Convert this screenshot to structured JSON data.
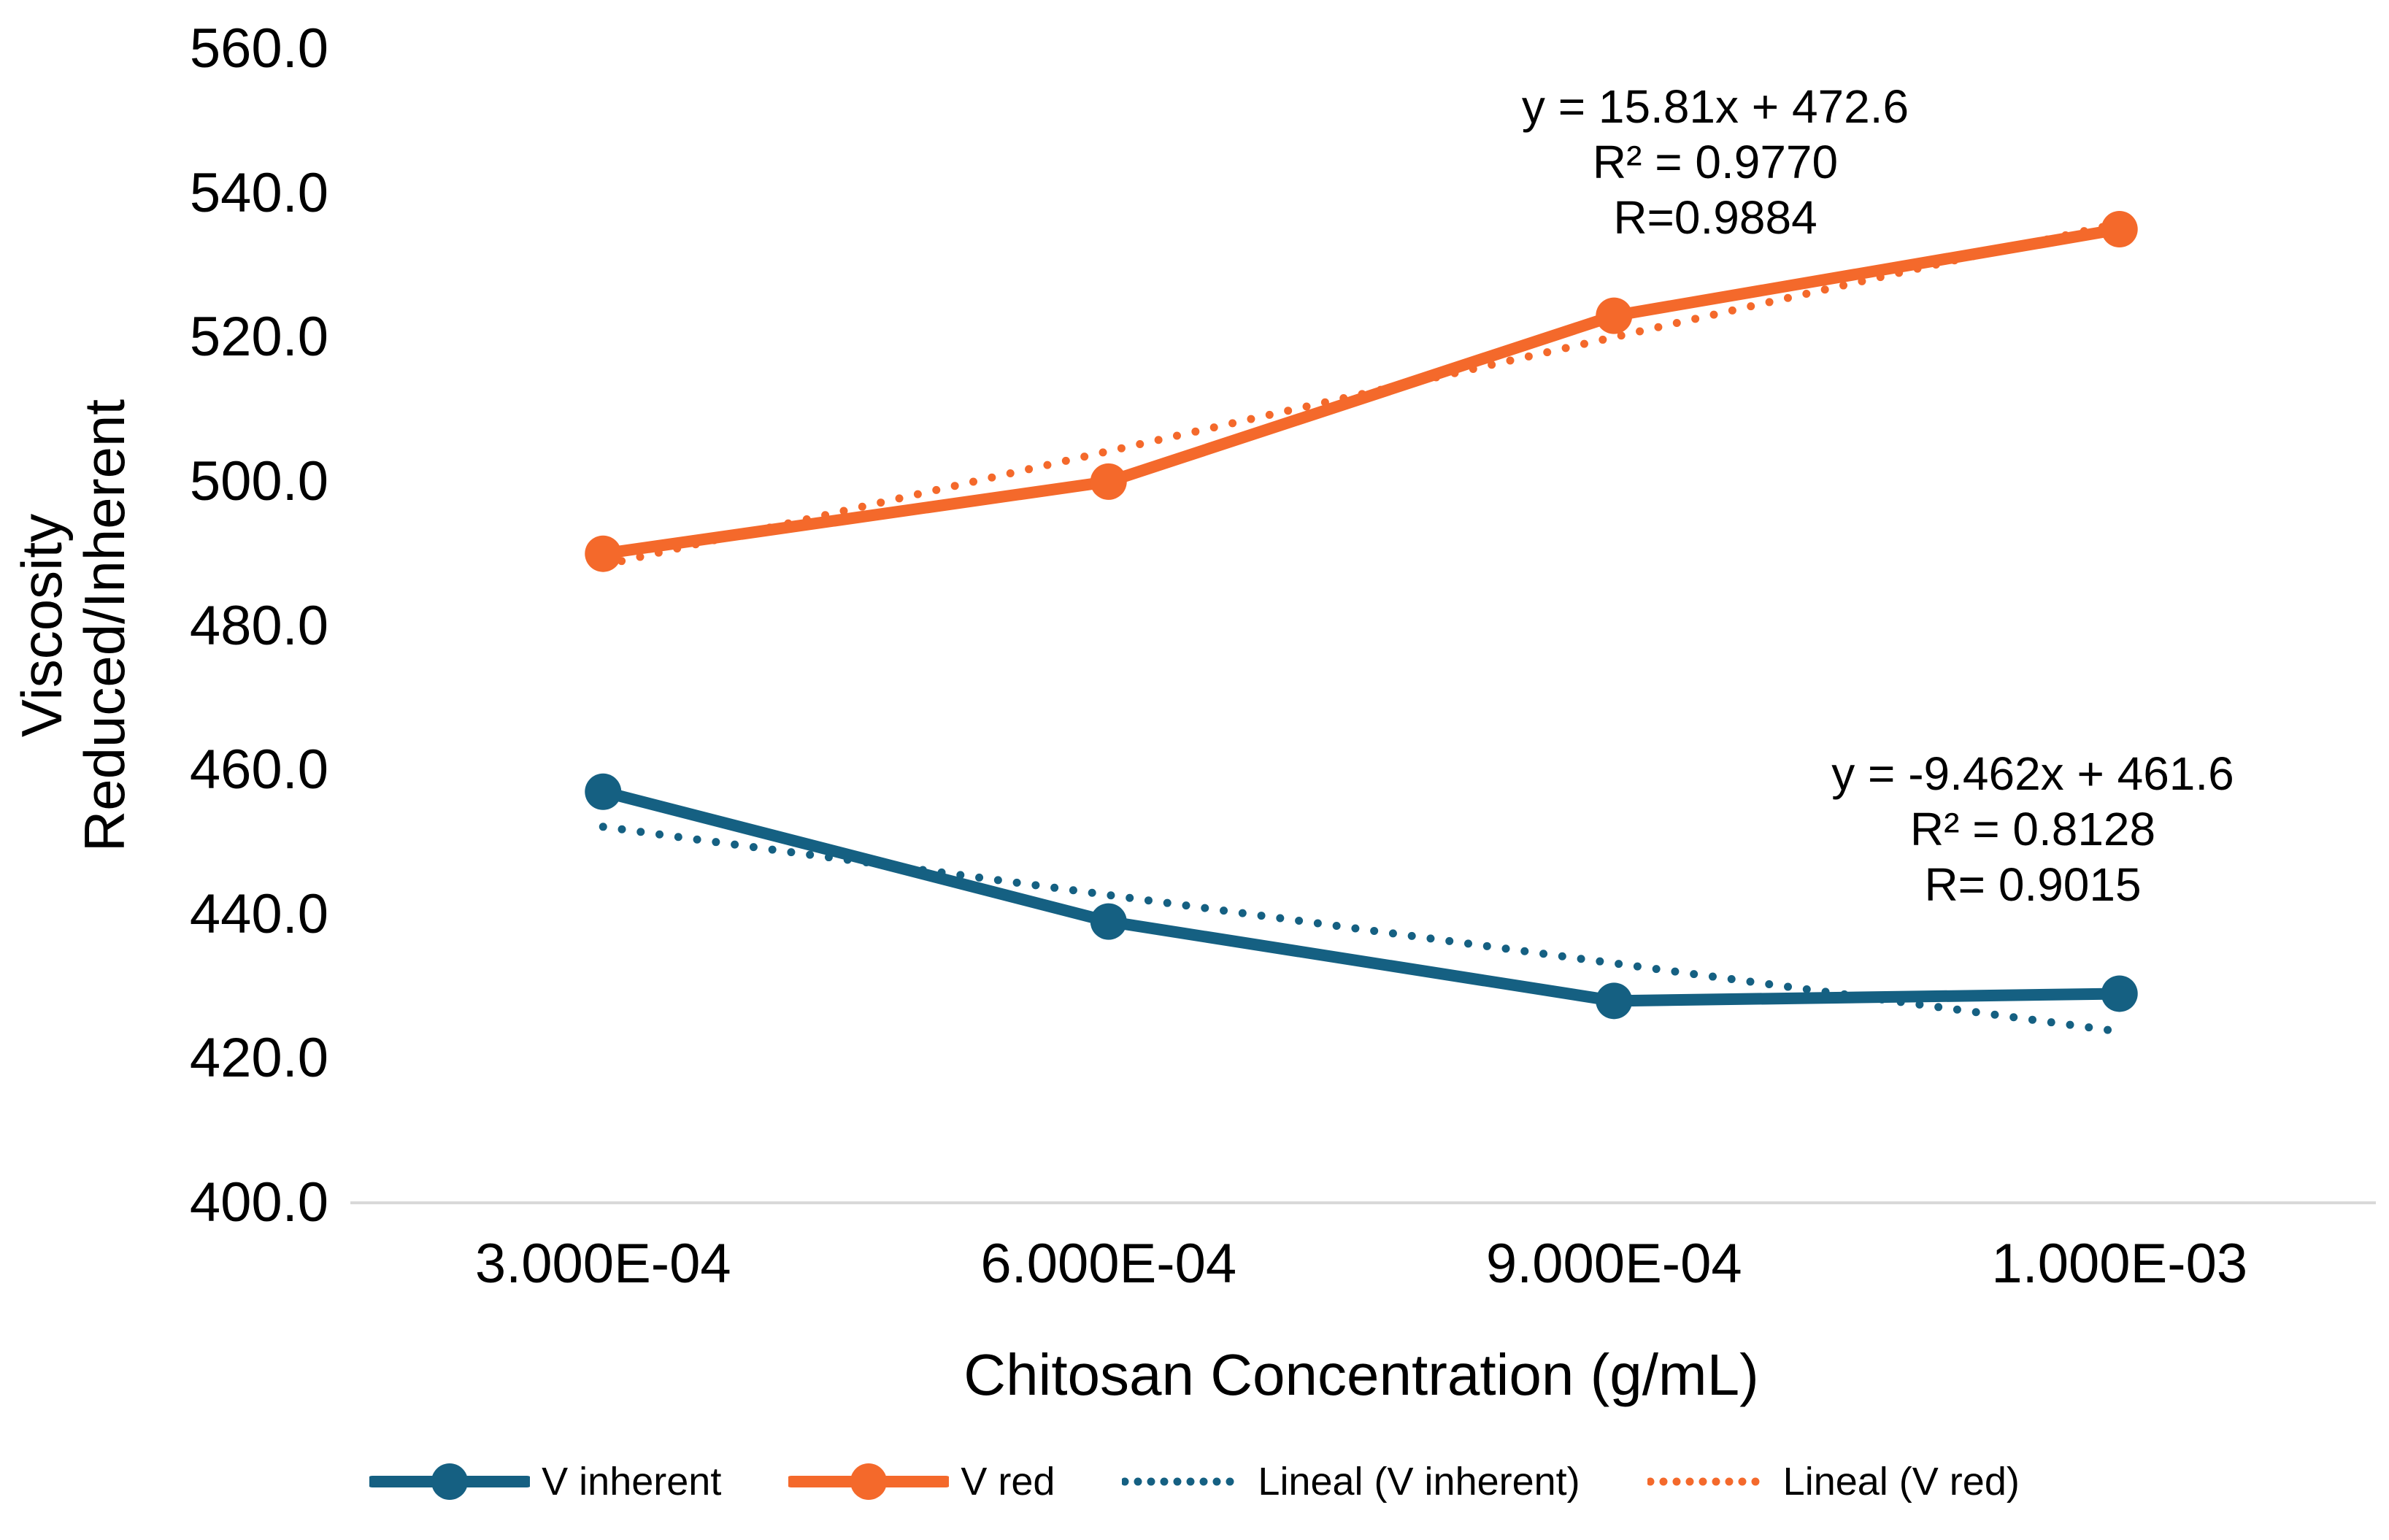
{
  "chart_data": {
    "type": "line",
    "title": "",
    "xlabel": "Chitosan Concentration (g/mL)",
    "ylabel_lines": [
      "Viscosity",
      "Reduced/Inherent"
    ],
    "x_categories": [
      "3.000E-04",
      "6.000E-04",
      "9.000E-04",
      "1.000E-03"
    ],
    "ylim": [
      400,
      560
    ],
    "ytick_step": 20,
    "yticks": [
      "560.0",
      "540.0",
      "520.0",
      "500.0",
      "480.0",
      "460.0",
      "440.0",
      "420.0",
      "400.0"
    ],
    "grid": false,
    "legend_position": "bottom",
    "axis_line_color": "#D9D9D9",
    "series": [
      {
        "name": "V inherent",
        "color": "#156082",
        "values": [
          457,
          439,
          428,
          429
        ]
      },
      {
        "name": "V red",
        "color": "#F4692B",
        "values": [
          490,
          500,
          523,
          535
        ]
      }
    ],
    "trendlines": [
      {
        "name": "Lineal (V inherent)",
        "color": "#156082",
        "slope": -9.462,
        "intercept": 461.6
      },
      {
        "name": "Lineal (V red)",
        "color": "#F4692B",
        "slope": 15.81,
        "intercept": 472.6
      }
    ],
    "annotations": [
      {
        "series": "V red",
        "lines": [
          "y = 15.81x + 472.6",
          "R² = 0.9770",
          "R=0.9884"
        ]
      },
      {
        "series": "V inherent",
        "lines": [
          "y = -9.462x + 461.6",
          "R² = 0.8128",
          "R= 0.9015"
        ]
      }
    ],
    "legend": [
      {
        "label": "V inherent",
        "style": "solid-marker",
        "color": "#156082"
      },
      {
        "label": "V red",
        "style": "solid-marker",
        "color": "#F4692B"
      },
      {
        "label": "Lineal (V inherent)",
        "style": "dotted",
        "color": "#156082"
      },
      {
        "label": "Lineal (V red)",
        "style": "dotted",
        "color": "#F4692B"
      }
    ]
  }
}
